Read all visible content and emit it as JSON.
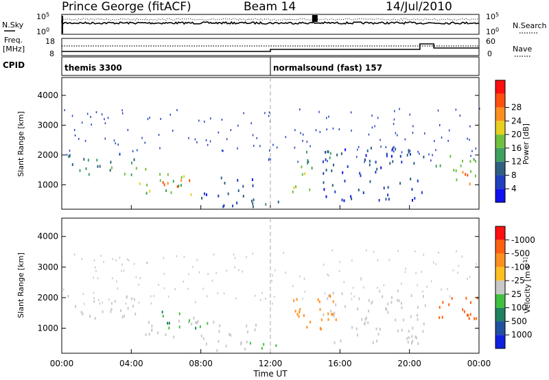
{
  "header": {
    "station": "Prince George (fitACF)",
    "beam": "Beam 14",
    "date": "14/Jul/2010"
  },
  "noise_panel": {
    "left_label": "N.Sky",
    "left_ticks": [
      "10^5",
      "10^0"
    ],
    "right_ticks": [
      "10^5",
      "10^0"
    ],
    "right_label": "N.Search"
  },
  "freq_panel": {
    "left_label_1": "Freq.",
    "left_label_2": "[MHz]",
    "left_ticks": [
      "18",
      "8"
    ],
    "right_ticks": [
      "60",
      "0"
    ],
    "right_label": "Nave",
    "cpid_label": "CPID"
  },
  "cpid_segments": [
    {
      "name": "themis 3300",
      "start_hour": 0
    },
    {
      "name": "normalsound (fast) 157",
      "start_hour": 12
    }
  ],
  "chart_data": [
    {
      "type": "heatmap",
      "name": "power",
      "ylabel": "Slant Range [km]",
      "ylim": [
        180,
        4600
      ],
      "y_ticks": [
        "1000",
        "2000",
        "3000",
        "4000"
      ],
      "xlim": [
        0,
        24
      ],
      "colorbar": {
        "label": "Power [dB]",
        "ticks": [
          "4",
          "8",
          "12",
          "16",
          "20",
          "24",
          "28"
        ],
        "colors": [
          "#1010f0",
          "#2040c0",
          "#306080",
          "#40a060",
          "#70c040",
          "#e8d020",
          "#ff9020",
          "#ff5010",
          "#ff1010"
        ]
      },
      "regions": [
        {
          "t0": 0.3,
          "t1": 4.2,
          "r0": 1500,
          "r1": 2100,
          "level": 9
        },
        {
          "t0": 1.5,
          "t1": 4.8,
          "r0": 1350,
          "r1": 1700,
          "level": 12
        },
        {
          "t0": 4.4,
          "t1": 8.0,
          "r0": 700,
          "r1": 1400,
          "level": 16
        },
        {
          "t0": 5.2,
          "t1": 7.6,
          "r0": 800,
          "r1": 1250,
          "level": 26
        },
        {
          "t0": 8.0,
          "t1": 11.2,
          "r0": 300,
          "r1": 1300,
          "level": 5
        },
        {
          "t0": 9.5,
          "t1": 12.8,
          "r0": 350,
          "r1": 560,
          "level": 9
        },
        {
          "t0": 13.0,
          "t1": 14.3,
          "r0": 800,
          "r1": 1700,
          "level": 18
        },
        {
          "t0": 13.8,
          "t1": 15.8,
          "r0": 1500,
          "r1": 2200,
          "level": 11
        },
        {
          "t0": 15.0,
          "t1": 21.0,
          "r0": 500,
          "r1": 2300,
          "level": 5
        },
        {
          "t0": 21.5,
          "t1": 23.9,
          "r0": 1200,
          "r1": 2100,
          "level": 13
        },
        {
          "t0": 23.0,
          "t1": 23.95,
          "r0": 1000,
          "r1": 1700,
          "level": 25
        }
      ]
    },
    {
      "type": "heatmap",
      "name": "velocity",
      "ylabel": "Slant Range [km]",
      "ylim": [
        180,
        4600
      ],
      "y_ticks": [
        "1000",
        "2000",
        "3000",
        "4000"
      ],
      "xlim": [
        0,
        24
      ],
      "x_ticks": [
        "00:00",
        "04:00",
        "08:00",
        "12:00",
        "16:00",
        "20:00",
        "00:00"
      ],
      "xlabel": "Time UT",
      "colorbar": {
        "label": "Velocity [m s^-1]",
        "ticks": [
          "1000",
          "500",
          "100",
          "25",
          "-25",
          "-100",
          "-500",
          "-1000"
        ],
        "colors": [
          "#1020e0",
          "#2050a0",
          "#208060",
          "#40c040",
          "#c8c8c8",
          "#ffc020",
          "#ff9020",
          "#ff6010",
          "#ff1010"
        ]
      },
      "regions": [
        {
          "t0": 0.3,
          "t1": 4.2,
          "r0": 1500,
          "r1": 2100,
          "level": 0
        },
        {
          "t0": 1.5,
          "t1": 4.8,
          "r0": 1350,
          "r1": 1700,
          "level": 0
        },
        {
          "t0": 4.4,
          "t1": 8.0,
          "r0": 700,
          "r1": 1400,
          "level": 0
        },
        {
          "t0": 5.2,
          "t1": 8.4,
          "r0": 1000,
          "r1": 1600,
          "level": 150
        },
        {
          "t0": 8.0,
          "t1": 11.2,
          "r0": 300,
          "r1": 1300,
          "level": 0
        },
        {
          "t0": 9.5,
          "t1": 12.8,
          "r0": 350,
          "r1": 560,
          "level": 80
        },
        {
          "t0": 13.0,
          "t1": 15.8,
          "r0": 800,
          "r1": 2200,
          "level": -350
        },
        {
          "t0": 15.0,
          "t1": 21.0,
          "r0": 500,
          "r1": 2300,
          "level": 0
        },
        {
          "t0": 21.5,
          "t1": 23.9,
          "r0": 1200,
          "r1": 2100,
          "level": -700
        },
        {
          "t0": 23.0,
          "t1": 23.95,
          "r0": 1000,
          "r1": 1700,
          "level": -600
        }
      ]
    }
  ]
}
